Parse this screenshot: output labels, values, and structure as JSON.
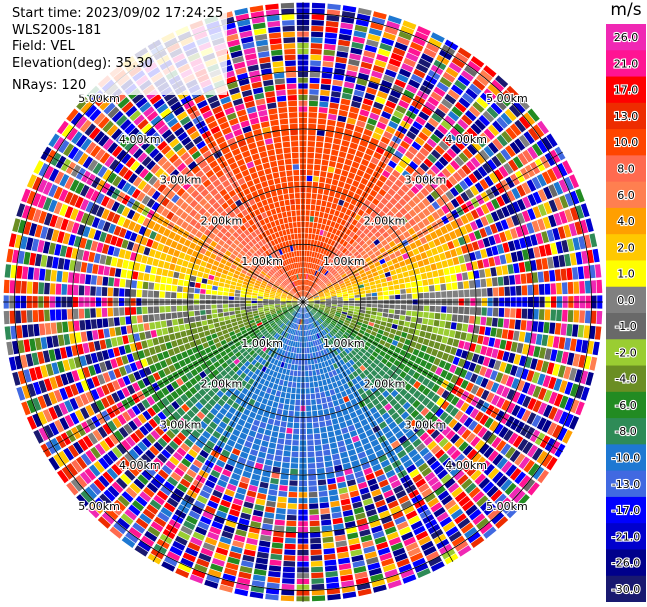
{
  "info": {
    "start_time": "Start time: 2023/09/02 17:24:25",
    "instrument": "WLS200s-181",
    "field": "Field: VEL",
    "elevation": "Elevation(deg): 35.30",
    "nrays": "NRays: 120"
  },
  "chart_data": {
    "type": "ppi",
    "field": "VEL",
    "elevation_deg": 35.3,
    "nrays": 120,
    "range_rings_km": [
      1.0,
      2.0,
      3.0,
      4.0,
      5.0
    ],
    "range_labels": [
      "1.00km",
      "2.00km",
      "3.00km",
      "4.00km",
      "5.00km"
    ],
    "max_range_km": 5.2,
    "colorbar": {
      "unit": "m/s",
      "ticks": [
        "26.0",
        "21.0",
        "17.0",
        "13.0",
        "10.0",
        "8.0",
        "6.0",
        "4.0",
        "2.0",
        "1.0",
        "0.0",
        "-1.0",
        "-2.0",
        "-4.0",
        "-6.0",
        "-8.0",
        "-10.0",
        "-13.0",
        "-17.0",
        "-21.0",
        "-26.0",
        "-30.0"
      ],
      "bands": [
        {
          "color": "#f028b4",
          "from": 26.0,
          "to": 30.0
        },
        {
          "color": "#ff1493",
          "from": 21.0,
          "to": 26.0
        },
        {
          "color": "#ff0000",
          "from": 17.0,
          "to": 21.0
        },
        {
          "color": "#ee2c00",
          "from": 13.0,
          "to": 17.0
        },
        {
          "color": "#ff4500",
          "from": 10.0,
          "to": 13.0
        },
        {
          "color": "#ff6a4f",
          "from": 8.0,
          "to": 10.0
        },
        {
          "color": "#ff7f50",
          "from": 6.0,
          "to": 8.0
        },
        {
          "color": "#ff9f00",
          "from": 4.0,
          "to": 6.0
        },
        {
          "color": "#ffc800",
          "from": 2.0,
          "to": 4.0
        },
        {
          "color": "#ffff00",
          "from": 1.0,
          "to": 2.0
        },
        {
          "color": "#808080",
          "from": 0.0,
          "to": 1.0
        },
        {
          "color": "#696969",
          "from": -1.0,
          "to": 0.0
        },
        {
          "color": "#9acd32",
          "from": -2.0,
          "to": -1.0
        },
        {
          "color": "#6b8e23",
          "from": -4.0,
          "to": -2.0
        },
        {
          "color": "#228b22",
          "from": -6.0,
          "to": -4.0
        },
        {
          "color": "#2e8b57",
          "from": -8.0,
          "to": -6.0
        },
        {
          "color": "#1e78d2",
          "from": -10.0,
          "to": -8.0
        },
        {
          "color": "#4169e1",
          "from": -13.0,
          "to": -10.0
        },
        {
          "color": "#0000ff",
          "from": -17.0,
          "to": -13.0
        },
        {
          "color": "#0000cd",
          "from": -21.0,
          "to": -17.0
        },
        {
          "color": "#00008b",
          "from": -26.0,
          "to": -21.0
        },
        {
          "color": "#191970",
          "from": -30.0,
          "to": -26.0
        }
      ]
    },
    "velocity_model": {
      "north_sector_ms": 12.0,
      "south_sector_ms": -10.0,
      "noise_beyond_km": 3.3
    }
  }
}
